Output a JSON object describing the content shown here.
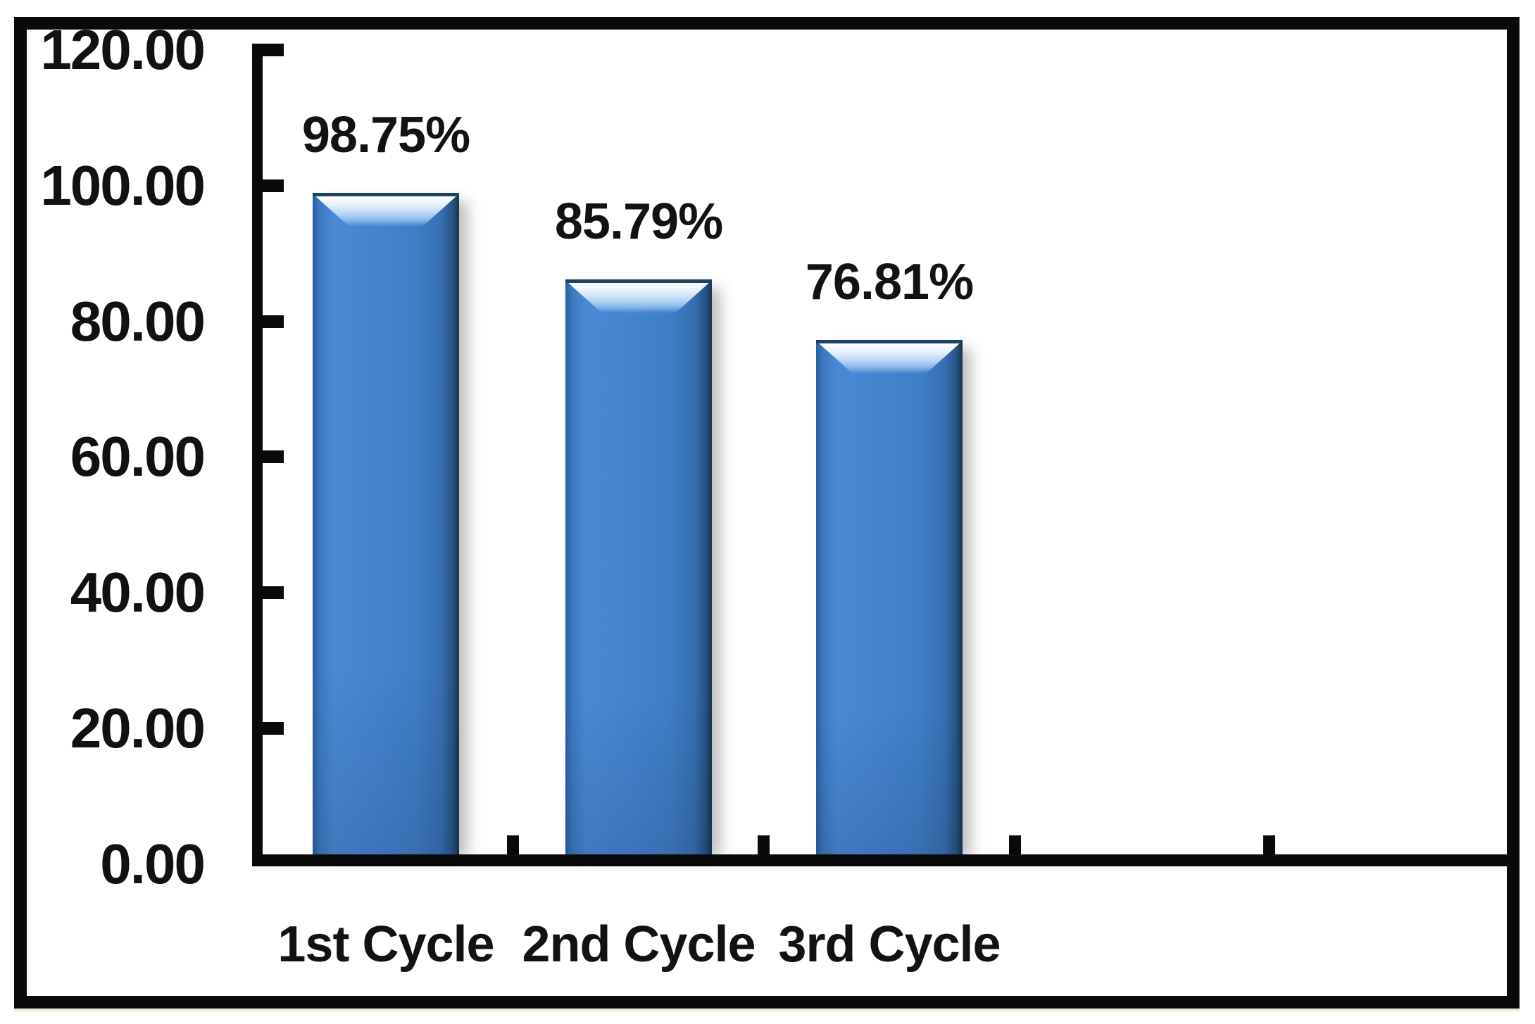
{
  "chart_data": {
    "type": "bar",
    "categories": [
      "1st Cycle",
      "2nd Cycle",
      "3rd Cycle"
    ],
    "values": [
      98.75,
      85.79,
      76.81
    ],
    "data_labels": [
      "98.75%",
      "85.79%",
      "76.81%"
    ],
    "y_tick_labels": [
      "120.00",
      "100.00",
      "80.00",
      "60.00",
      "40.00",
      "20.00",
      "0.00"
    ],
    "y_tick_values": [
      120,
      100,
      80,
      60,
      40,
      20,
      0
    ],
    "ylim": [
      0,
      120
    ],
    "title": "",
    "xlabel": "",
    "ylabel": "",
    "grid": "off",
    "legend": "none",
    "bar_color": "#4583CF",
    "bar_edge_color": "#1E4166",
    "bar_highlight_color": "#FDFEFF",
    "axis_color": "#0A0A0A",
    "text_color": "#121212",
    "background_color": "#FFFFFF",
    "frame_color": "#0A0A0A"
  }
}
